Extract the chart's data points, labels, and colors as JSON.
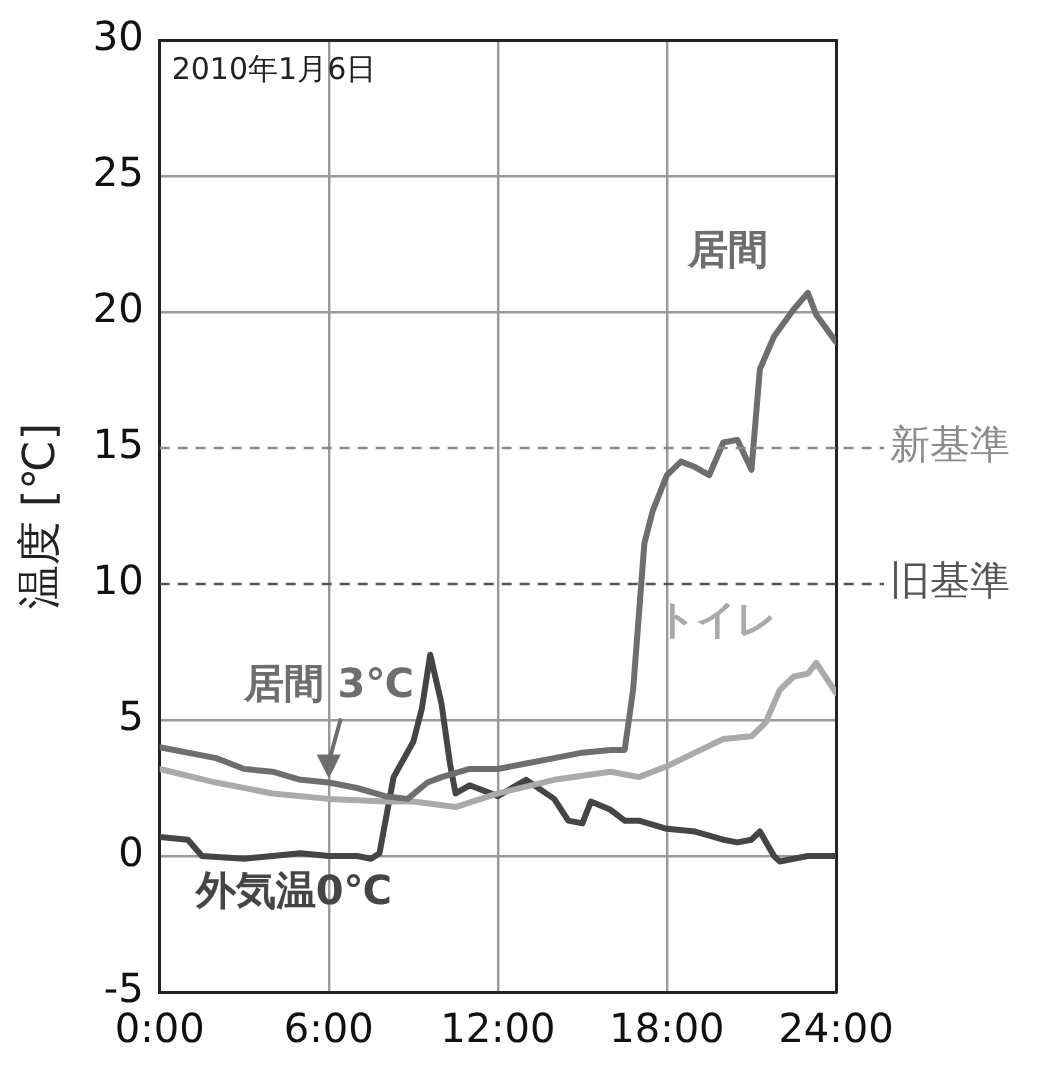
{
  "chart_data": {
    "type": "line",
    "ylabel": "温度 [℃]",
    "xlim": [
      0,
      24
    ],
    "ylim": [
      -5,
      30
    ],
    "xticks": [
      {
        "value": 0,
        "label": "0:00"
      },
      {
        "value": 6,
        "label": "6:00"
      },
      {
        "value": 12,
        "label": "12:00"
      },
      {
        "value": 18,
        "label": "18:00"
      },
      {
        "value": 24,
        "label": "24:00"
      }
    ],
    "yticks": [
      -5,
      0,
      5,
      10,
      15,
      20,
      25,
      30
    ],
    "grid": true,
    "legend": false,
    "marker": "none",
    "line_style": "solid",
    "series": [
      {
        "name": "居間",
        "color": "#6e6e6e",
        "x": [
          0,
          2,
          3,
          4,
          5,
          6,
          7,
          8,
          8.8,
          9.5,
          10,
          11,
          12,
          13,
          14,
          15,
          16,
          16.5,
          16.8,
          17.2,
          17.5,
          18,
          18.5,
          19,
          19.5,
          20,
          20.5,
          21,
          21.3,
          21.8,
          22.5,
          23,
          23.3,
          24
        ],
        "values": [
          4.0,
          3.6,
          3.2,
          3.1,
          2.8,
          2.7,
          2.5,
          2.2,
          2.1,
          2.7,
          2.9,
          3.2,
          3.2,
          3.4,
          3.6,
          3.8,
          3.9,
          3.9,
          6.1,
          11.5,
          12.7,
          14.0,
          14.5,
          14.3,
          14.0,
          15.2,
          15.3,
          14.2,
          17.9,
          19.1,
          20.1,
          20.7,
          19.9,
          18.9
        ]
      },
      {
        "name": "トイレ",
        "color": "#aaaaaa",
        "x": [
          0,
          2,
          4,
          6,
          8,
          9,
          10.5,
          12,
          14,
          16,
          17,
          18,
          19,
          20,
          21,
          21.5,
          22,
          22.5,
          23,
          23.3,
          24
        ],
        "values": [
          3.2,
          2.7,
          2.3,
          2.1,
          2.0,
          2.0,
          1.8,
          2.3,
          2.8,
          3.1,
          2.9,
          3.3,
          3.8,
          4.3,
          4.4,
          4.9,
          6.1,
          6.6,
          6.7,
          7.1,
          6.0
        ]
      },
      {
        "name": "外気温0℃",
        "color": "#454545",
        "x": [
          0,
          1,
          1.5,
          3,
          4,
          5,
          6,
          7,
          7.5,
          7.8,
          8.3,
          9,
          9.3,
          9.6,
          10,
          10.3,
          10.5,
          11,
          12,
          13,
          14,
          14.5,
          15,
          15.3,
          16,
          16.5,
          17,
          18,
          19,
          20,
          20.5,
          21,
          21.3,
          21.8,
          22,
          23,
          24
        ],
        "values": [
          0.7,
          0.6,
          0,
          -0.1,
          0,
          0.1,
          0,
          0,
          -0.1,
          0.1,
          2.9,
          4.2,
          5.4,
          7.4,
          5.6,
          3.4,
          2.3,
          2.6,
          2.2,
          2.8,
          2.1,
          1.3,
          1.2,
          2.0,
          1.7,
          1.3,
          1.3,
          1.0,
          0.9,
          0.6,
          0.5,
          0.6,
          0.9,
          0,
          -0.2,
          0,
          0
        ]
      }
    ],
    "ref_lines": [
      {
        "axis": "y",
        "value": 15,
        "label": "新基準",
        "color": "#8c8c8c",
        "line_style": "dashed"
      },
      {
        "axis": "y",
        "value": 10,
        "label": "旧基準",
        "color": "#555555",
        "line_style": "dashed"
      }
    ],
    "annotations": [
      "2010年1月6日",
      {
        "text": "居間 3℃",
        "x": 6,
        "y": 2.7
      }
    ]
  }
}
